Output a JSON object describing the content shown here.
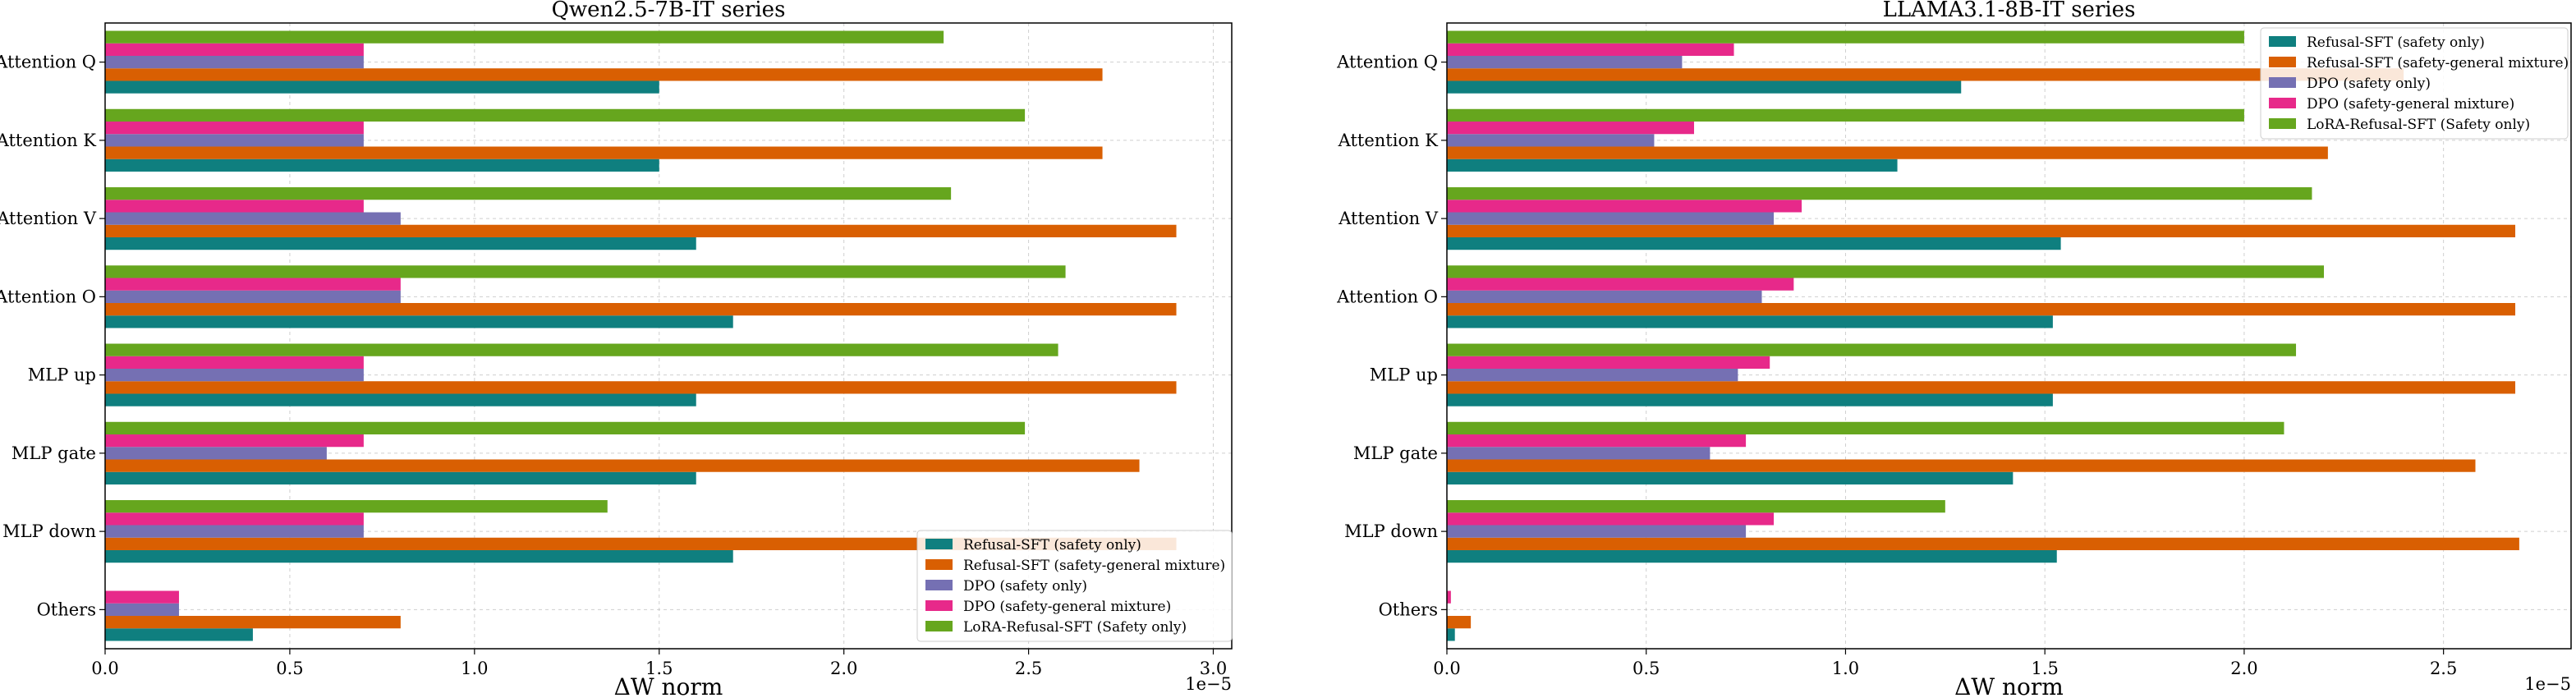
{
  "chart_data": [
    {
      "type": "bar",
      "orientation": "horizontal",
      "title": "Qwen2.5-7B-IT series",
      "xlabel": "ΔW norm",
      "ylabel": "",
      "scale_label": "1e−5",
      "xlim": [
        0,
        3.05
      ],
      "xticks": [
        "0.0",
        "0.5",
        "1.0",
        "1.5",
        "2.0",
        "2.5",
        "3.0"
      ],
      "grid": true,
      "legend_position": "lower-right",
      "categories": [
        "Attention Q",
        "Attention K",
        "Attention V",
        "Attention O",
        "MLP up",
        "MLP gate",
        "MLP down",
        "Others"
      ],
      "series": [
        {
          "name": "Refusal-SFT (safety only)",
          "color": "#0f7f7f",
          "values": [
            1.5,
            1.5,
            1.6,
            1.7,
            1.6,
            1.6,
            1.7,
            0.4
          ]
        },
        {
          "name": "Refusal-SFT (safety-general mixture)",
          "color": "#d95f02",
          "values": [
            2.7,
            2.7,
            2.9,
            2.9,
            2.9,
            2.8,
            2.9,
            0.8
          ]
        },
        {
          "name": "DPO (safety only)",
          "color": "#7570b3",
          "values": [
            0.7,
            0.7,
            0.8,
            0.8,
            0.7,
            0.6,
            0.7,
            0.2
          ]
        },
        {
          "name": "DPO (safety-general mixture)",
          "color": "#e7298a",
          "values": [
            0.7,
            0.7,
            0.7,
            0.8,
            0.7,
            0.7,
            0.7,
            0.2
          ]
        },
        {
          "name": "LoRA-Refusal-SFT (Safety only)",
          "color": "#66a61e",
          "values": [
            2.27,
            2.49,
            2.29,
            2.6,
            2.58,
            2.49,
            1.36,
            0.0
          ]
        }
      ]
    },
    {
      "type": "bar",
      "orientation": "horizontal",
      "title": "LLAMA3.1-8B-IT series",
      "xlabel": "ΔW norm",
      "ylabel": "",
      "scale_label": "1e−5",
      "xlim": [
        0,
        2.82
      ],
      "xticks": [
        "0.0",
        "0.5",
        "1.0",
        "1.5",
        "2.0",
        "2.5"
      ],
      "grid": true,
      "legend_position": "upper-right",
      "categories": [
        "Attention Q",
        "Attention K",
        "Attention V",
        "Attention O",
        "MLP up",
        "MLP gate",
        "MLP down",
        "Others"
      ],
      "series": [
        {
          "name": "Refusal-SFT (safety only)",
          "color": "#0f7f7f",
          "values": [
            1.29,
            1.13,
            1.54,
            1.52,
            1.52,
            1.42,
            1.53,
            0.02
          ]
        },
        {
          "name": "Refusal-SFT (safety-general mixture)",
          "color": "#d95f02",
          "values": [
            2.4,
            2.21,
            2.68,
            2.68,
            2.68,
            2.58,
            2.69,
            0.06
          ]
        },
        {
          "name": "DPO (safety only)",
          "color": "#7570b3",
          "values": [
            0.59,
            0.52,
            0.82,
            0.79,
            0.73,
            0.66,
            0.75,
            0.0
          ]
        },
        {
          "name": "DPO (safety-general mixture)",
          "color": "#e7298a",
          "values": [
            0.72,
            0.62,
            0.89,
            0.87,
            0.81,
            0.75,
            0.82,
            0.01
          ]
        },
        {
          "name": "LoRA-Refusal-SFT (Safety only)",
          "color": "#66a61e",
          "values": [
            2.0,
            2.0,
            2.17,
            2.2,
            2.13,
            2.1,
            1.25,
            0.0
          ]
        }
      ]
    }
  ]
}
